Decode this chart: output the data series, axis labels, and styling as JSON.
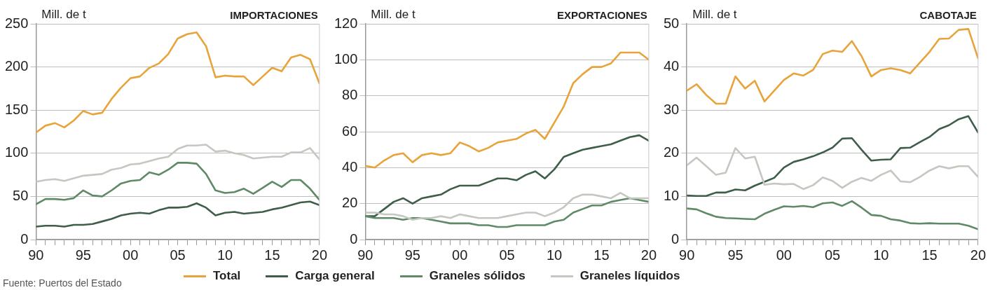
{
  "chart_data": [
    {
      "type": "line",
      "title": "IMPORTACIONES",
      "ylabel": "Mill. de t",
      "x": [
        1990,
        1991,
        1992,
        1993,
        1994,
        1995,
        1996,
        1997,
        1998,
        1999,
        2000,
        2001,
        2002,
        2003,
        2004,
        2005,
        2006,
        2007,
        2008,
        2009,
        2010,
        2011,
        2012,
        2013,
        2014,
        2015,
        2016,
        2017,
        2018,
        2019,
        2020
      ],
      "xlim": [
        1990,
        2020
      ],
      "xticks": [
        {
          "value": 1990,
          "label": "90"
        },
        {
          "value": 1991,
          "label": null
        },
        {
          "value": 1992,
          "label": null
        },
        {
          "value": 1993,
          "label": null
        },
        {
          "value": 1994,
          "label": null
        },
        {
          "value": 1995,
          "label": "95"
        },
        {
          "value": 1996,
          "label": null
        },
        {
          "value": 1997,
          "label": null
        },
        {
          "value": 1998,
          "label": null
        },
        {
          "value": 1999,
          "label": null
        },
        {
          "value": 2000,
          "label": "00"
        },
        {
          "value": 2001,
          "label": null
        },
        {
          "value": 2002,
          "label": null
        },
        {
          "value": 2003,
          "label": null
        },
        {
          "value": 2004,
          "label": null
        },
        {
          "value": 2005,
          "label": "05"
        },
        {
          "value": 2006,
          "label": null
        },
        {
          "value": 2007,
          "label": null
        },
        {
          "value": 2008,
          "label": null
        },
        {
          "value": 2009,
          "label": null
        },
        {
          "value": 2010,
          "label": "10"
        },
        {
          "value": 2011,
          "label": null
        },
        {
          "value": 2012,
          "label": null
        },
        {
          "value": 2013,
          "label": null
        },
        {
          "value": 2014,
          "label": null
        },
        {
          "value": 2015,
          "label": "15"
        },
        {
          "value": 2016,
          "label": null
        },
        {
          "value": 2017,
          "label": null
        },
        {
          "value": 2018,
          "label": null
        },
        {
          "value": 2019,
          "label": null
        },
        {
          "value": 2020,
          "label": "20"
        }
      ],
      "ylim": [
        0,
        250
      ],
      "yticks": [
        0,
        50,
        100,
        150,
        200,
        250
      ],
      "grid": "y",
      "legend": "bottom",
      "marker": "none",
      "line_style": "solid",
      "annotations": [
        "Fuente: Puertos del Estado"
      ],
      "series": [
        {
          "name": "Total",
          "color": "#e8a33a",
          "values": [
            124,
            132,
            135,
            130,
            138,
            149,
            145,
            147,
            163,
            176,
            187,
            189,
            199,
            204,
            215,
            233,
            238,
            240,
            224,
            188,
            190,
            189,
            189,
            179,
            189,
            199,
            195,
            211,
            214,
            209,
            181
          ]
        },
        {
          "name": "Carga general",
          "color": "#3e5e4a",
          "values": [
            15,
            16,
            16,
            15,
            17,
            17,
            18,
            21,
            24,
            28,
            30,
            31,
            30,
            34,
            37,
            37,
            38,
            42,
            37,
            28,
            31,
            32,
            30,
            31,
            32,
            35,
            37,
            40,
            43,
            44,
            40
          ]
        },
        {
          "name": "Graneles sólidos",
          "color": "#5f8a67",
          "values": [
            41,
            47,
            47,
            46,
            48,
            57,
            51,
            50,
            57,
            65,
            68,
            69,
            78,
            75,
            81,
            89,
            89,
            88,
            76,
            57,
            54,
            55,
            59,
            53,
            60,
            67,
            61,
            69,
            69,
            59,
            46
          ]
        },
        {
          "name": "Graneles líquidos",
          "color": "#c4c8c0",
          "values": [
            67,
            69,
            70,
            68,
            71,
            74,
            75,
            76,
            81,
            83,
            87,
            88,
            91,
            94,
            96,
            105,
            109,
            109,
            110,
            102,
            103,
            100,
            98,
            94,
            95,
            96,
            96,
            101,
            101,
            106,
            93
          ]
        }
      ]
    },
    {
      "type": "line",
      "title": "EXPORTACIONES",
      "ylabel": "Mill. de t",
      "x": [
        1990,
        1991,
        1992,
        1993,
        1994,
        1995,
        1996,
        1997,
        1998,
        1999,
        2000,
        2001,
        2002,
        2003,
        2004,
        2005,
        2006,
        2007,
        2008,
        2009,
        2010,
        2011,
        2012,
        2013,
        2014,
        2015,
        2016,
        2017,
        2018,
        2019,
        2020
      ],
      "xlim": [
        1990,
        2020
      ],
      "xticks": [
        {
          "value": 1990,
          "label": "90"
        },
        {
          "value": 1991,
          "label": null
        },
        {
          "value": 1992,
          "label": null
        },
        {
          "value": 1993,
          "label": null
        },
        {
          "value": 1994,
          "label": null
        },
        {
          "value": 1995,
          "label": "95"
        },
        {
          "value": 1996,
          "label": null
        },
        {
          "value": 1997,
          "label": null
        },
        {
          "value": 1998,
          "label": null
        },
        {
          "value": 1999,
          "label": null
        },
        {
          "value": 2000,
          "label": "00"
        },
        {
          "value": 2001,
          "label": null
        },
        {
          "value": 2002,
          "label": null
        },
        {
          "value": 2003,
          "label": null
        },
        {
          "value": 2004,
          "label": null
        },
        {
          "value": 2005,
          "label": "05"
        },
        {
          "value": 2006,
          "label": null
        },
        {
          "value": 2007,
          "label": null
        },
        {
          "value": 2008,
          "label": null
        },
        {
          "value": 2009,
          "label": null
        },
        {
          "value": 2010,
          "label": "10"
        },
        {
          "value": 2011,
          "label": null
        },
        {
          "value": 2012,
          "label": null
        },
        {
          "value": 2013,
          "label": null
        },
        {
          "value": 2014,
          "label": null
        },
        {
          "value": 2015,
          "label": "15"
        },
        {
          "value": 2016,
          "label": null
        },
        {
          "value": 2017,
          "label": null
        },
        {
          "value": 2018,
          "label": null
        },
        {
          "value": 2019,
          "label": null
        },
        {
          "value": 2020,
          "label": "20"
        }
      ],
      "ylim": [
        0,
        120
      ],
      "yticks": [
        0,
        20,
        40,
        60,
        80,
        100,
        120
      ],
      "grid": "y",
      "legend": "bottom",
      "marker": "none",
      "line_style": "solid",
      "series": [
        {
          "name": "Total",
          "color": "#e8a33a",
          "values": [
            41,
            40,
            44,
            47,
            48,
            43,
            47,
            48,
            47,
            48,
            54,
            52,
            49,
            51,
            54,
            55,
            56,
            59,
            61,
            56,
            65,
            74,
            87,
            92,
            96,
            96,
            98,
            104,
            104,
            104,
            100
          ]
        },
        {
          "name": "Carga general",
          "color": "#3e5e4a",
          "values": [
            13,
            13,
            17,
            21,
            23,
            20,
            23,
            24,
            25,
            28,
            30,
            30,
            30,
            32,
            34,
            34,
            33,
            36,
            38,
            34,
            39,
            46,
            48,
            50,
            51,
            52,
            53,
            55,
            57,
            58,
            55
          ]
        },
        {
          "name": "Graneles sólidos",
          "color": "#5f8a67",
          "values": [
            13,
            12,
            12,
            12,
            11,
            12,
            12,
            11,
            10,
            9,
            9,
            9,
            8,
            8,
            7,
            7,
            8,
            8,
            8,
            8,
            10,
            11,
            15,
            17,
            19,
            19,
            21,
            22,
            23,
            22,
            21
          ]
        },
        {
          "name": "Graneles líquidos",
          "color": "#c4c8c0",
          "values": [
            15,
            15,
            14,
            14,
            13,
            11,
            12,
            12,
            13,
            12,
            14,
            13,
            12,
            12,
            12,
            13,
            14,
            15,
            15,
            13,
            15,
            18,
            23,
            25,
            25,
            24,
            23,
            26,
            23,
            23,
            23
          ]
        }
      ]
    },
    {
      "type": "line",
      "title": "CABOTAJE",
      "ylabel": "Mill. de t",
      "x": [
        1990,
        1991,
        1992,
        1993,
        1994,
        1995,
        1996,
        1997,
        1998,
        1999,
        2000,
        2001,
        2002,
        2003,
        2004,
        2005,
        2006,
        2007,
        2008,
        2009,
        2010,
        2011,
        2012,
        2013,
        2014,
        2015,
        2016,
        2017,
        2018,
        2019,
        2020
      ],
      "xlim": [
        1990,
        2020
      ],
      "xticks": [
        {
          "value": 1990,
          "label": "90"
        },
        {
          "value": 1991,
          "label": null
        },
        {
          "value": 1992,
          "label": null
        },
        {
          "value": 1993,
          "label": null
        },
        {
          "value": 1994,
          "label": null
        },
        {
          "value": 1995,
          "label": "95"
        },
        {
          "value": 1996,
          "label": null
        },
        {
          "value": 1997,
          "label": null
        },
        {
          "value": 1998,
          "label": null
        },
        {
          "value": 1999,
          "label": null
        },
        {
          "value": 2000,
          "label": "00"
        },
        {
          "value": 2001,
          "label": null
        },
        {
          "value": 2002,
          "label": null
        },
        {
          "value": 2003,
          "label": null
        },
        {
          "value": 2004,
          "label": null
        },
        {
          "value": 2005,
          "label": "05"
        },
        {
          "value": 2006,
          "label": null
        },
        {
          "value": 2007,
          "label": null
        },
        {
          "value": 2008,
          "label": null
        },
        {
          "value": 2009,
          "label": null
        },
        {
          "value": 2010,
          "label": "10"
        },
        {
          "value": 2011,
          "label": null
        },
        {
          "value": 2012,
          "label": null
        },
        {
          "value": 2013,
          "label": null
        },
        {
          "value": 2014,
          "label": null
        },
        {
          "value": 2015,
          "label": "15"
        },
        {
          "value": 2016,
          "label": null
        },
        {
          "value": 2017,
          "label": null
        },
        {
          "value": 2018,
          "label": null
        },
        {
          "value": 2019,
          "label": null
        },
        {
          "value": 2020,
          "label": "20"
        }
      ],
      "ylim": [
        0,
        50
      ],
      "yticks": [
        0,
        10,
        20,
        30,
        40,
        50
      ],
      "grid": "y",
      "legend": "bottom",
      "marker": "none",
      "line_style": "solid",
      "series": [
        {
          "name": "Total",
          "color": "#e8a33a",
          "values": [
            34.5,
            36,
            33.5,
            31.5,
            31.5,
            37.8,
            35,
            36.8,
            32,
            34.5,
            37,
            38.5,
            38,
            39.3,
            43,
            43.8,
            43.5,
            46,
            42.5,
            37.8,
            39.3,
            39.7,
            39.3,
            38.5,
            41,
            43.5,
            46.5,
            46.6,
            48.6,
            48.8,
            42
          ]
        },
        {
          "name": "Carga general",
          "color": "#3e5e4a",
          "values": [
            10.2,
            10.1,
            10.1,
            10.9,
            10.9,
            11.6,
            11.4,
            12.5,
            13.4,
            14.3,
            16.7,
            18,
            18.6,
            19.3,
            20.2,
            21.3,
            23.4,
            23.5,
            20.8,
            18.3,
            18.5,
            18.6,
            21.2,
            21.3,
            22.6,
            23.8,
            25.6,
            26.5,
            27.9,
            28.6,
            24.8
          ]
        },
        {
          "name": "Graneles sólidos",
          "color": "#5f8a67",
          "values": [
            7.2,
            7,
            6.1,
            5.3,
            5,
            4.9,
            4.8,
            4.7,
            6,
            6.9,
            7.7,
            7.6,
            7.8,
            7.5,
            8.4,
            8.6,
            7.8,
            8.9,
            7.4,
            5.7,
            5.5,
            4.7,
            4.4,
            3.8,
            3.7,
            3.8,
            3.7,
            3.7,
            3.7,
            3.2,
            2.4
          ]
        },
        {
          "name": "Graneles líquidos",
          "color": "#c4c8c0",
          "values": [
            17.2,
            19,
            17,
            15,
            15.5,
            21.2,
            18.8,
            19.2,
            12.7,
            13,
            12.8,
            12.9,
            11.7,
            12.6,
            14.4,
            13.6,
            12,
            13.4,
            14.3,
            13.6,
            15,
            16,
            13.5,
            13.3,
            14.5,
            16,
            17,
            16.5,
            17,
            17,
            14.5
          ]
        }
      ]
    }
  ]
}
